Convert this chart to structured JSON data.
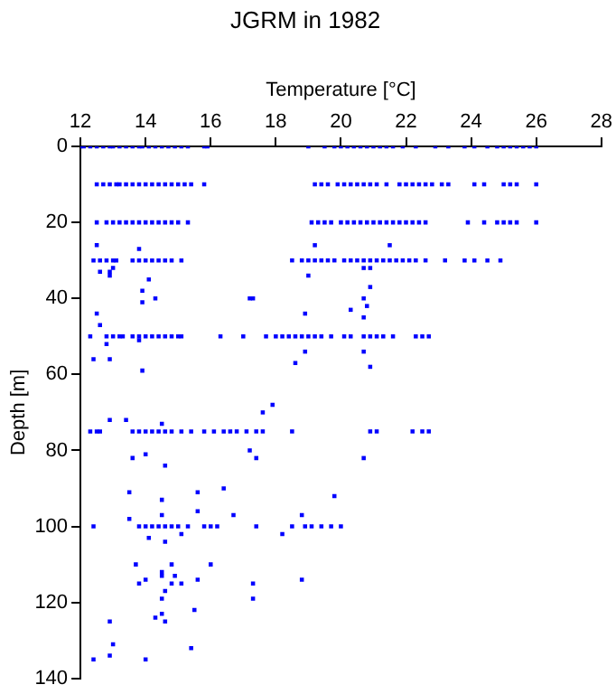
{
  "chart_data": {
    "type": "scatter",
    "title": "JGRM in 1982",
    "xlabel": "Temperature [°C]",
    "ylabel": "Depth [m]",
    "color": "#0000ff",
    "marker": "square",
    "grid": false,
    "legend": false,
    "xlim": [
      12,
      28
    ],
    "xticks": [
      12,
      14,
      16,
      18,
      20,
      22,
      24,
      26,
      28
    ],
    "ylim": [
      140,
      0
    ],
    "yticks": [
      0,
      20,
      40,
      60,
      80,
      100,
      120,
      140
    ],
    "x": [
      12.0,
      12.1,
      12.3,
      12.5,
      12.7,
      12.9,
      13.0,
      13.2,
      13.4,
      13.6,
      13.8,
      13.9,
      14.1,
      14.3,
      14.5,
      14.7,
      14.9,
      15.1,
      15.3,
      15.8,
      15.9,
      19.0,
      19.5,
      19.8,
      20.0,
      20.2,
      20.4,
      20.6,
      20.8,
      21.0,
      21.2,
      21.4,
      21.6,
      21.9,
      22.3,
      22.9,
      23.3,
      23.8,
      24.1,
      24.5,
      24.8,
      25.0,
      25.2,
      25.4,
      25.6,
      25.8,
      26.0,
      12.5,
      12.7,
      12.9,
      13.1,
      13.2,
      13.4,
      13.6,
      13.8,
      14.0,
      14.2,
      14.4,
      14.6,
      14.8,
      15.0,
      15.2,
      15.4,
      15.8,
      19.2,
      19.4,
      19.6,
      19.9,
      20.1,
      20.3,
      20.5,
      20.7,
      20.9,
      21.1,
      21.4,
      21.8,
      22.0,
      22.2,
      22.4,
      22.6,
      22.8,
      23.1,
      23.3,
      24.1,
      24.4,
      25.0,
      25.2,
      25.4,
      26.0,
      12.5,
      12.8,
      13.0,
      13.2,
      13.4,
      13.6,
      13.8,
      14.0,
      14.2,
      14.4,
      14.6,
      14.8,
      15.0,
      15.3,
      19.1,
      19.3,
      19.5,
      19.7,
      20.0,
      20.2,
      20.4,
      20.6,
      20.8,
      21.0,
      21.2,
      21.4,
      21.6,
      21.8,
      22.0,
      22.2,
      22.4,
      22.6,
      23.9,
      24.4,
      24.8,
      25.0,
      25.2,
      25.4,
      26.0,
      12.5,
      13.8,
      19.2,
      21.5,
      12.4,
      12.6,
      12.8,
      13.0,
      13.1,
      13.6,
      13.8,
      14.0,
      14.2,
      14.4,
      14.6,
      14.8,
      15.1,
      18.5,
      18.8,
      19.0,
      19.2,
      19.4,
      19.6,
      19.8,
      20.1,
      20.3,
      20.5,
      20.7,
      20.9,
      21.1,
      21.3,
      21.5,
      21.7,
      21.9,
      22.1,
      22.3,
      22.6,
      23.2,
      23.8,
      24.1,
      24.5,
      24.9,
      12.6,
      12.9,
      13.0,
      12.9,
      14.1,
      19.0,
      20.7,
      20.9,
      20.9,
      13.9,
      13.9,
      14.3,
      17.2,
      17.3,
      18.9,
      12.5,
      12.6,
      20.7,
      20.8,
      20.3,
      20.7,
      12.3,
      12.8,
      13.0,
      13.2,
      13.3,
      13.6,
      13.8,
      14.0,
      14.2,
      14.4,
      14.6,
      14.8,
      15.0,
      15.1,
      16.3,
      17.0,
      17.7,
      18.0,
      18.2,
      18.4,
      18.6,
      18.8,
      19.0,
      19.2,
      19.4,
      19.7,
      20.1,
      20.3,
      20.7,
      20.9,
      21.1,
      21.3,
      21.6,
      22.3,
      22.5,
      22.7,
      12.8,
      12.4,
      12.9,
      13.9,
      18.9,
      18.6,
      20.7,
      20.9,
      13.8,
      12.9,
      13.4,
      14.5,
      17.6,
      17.9,
      12.3,
      12.5,
      12.6,
      13.6,
      13.8,
      14.0,
      14.2,
      14.4,
      14.6,
      14.8,
      15.1,
      15.4,
      15.8,
      16.1,
      16.4,
      16.6,
      16.8,
      17.1,
      17.4,
      17.6,
      18.5,
      20.9,
      21.1,
      22.2,
      22.5,
      22.7,
      13.6,
      14.0,
      14.6,
      17.2,
      17.4,
      20.7,
      13.5,
      14.5,
      15.6,
      16.4,
      15.6,
      13.5,
      14.5,
      16.7,
      18.8,
      19.8,
      12.4,
      13.8,
      14.0,
      14.2,
      14.4,
      14.6,
      14.8,
      15.0,
      15.3,
      15.8,
      16.0,
      16.2,
      17.4,
      18.5,
      18.9,
      19.1,
      19.4,
      19.7,
      20.0,
      18.2,
      15.1,
      14.1,
      14.6,
      13.7,
      14.0,
      14.5,
      14.8,
      16.0,
      18.8,
      13.8,
      14.5,
      14.9,
      14.8,
      15.1,
      15.6,
      14.6,
      14.5,
      17.3,
      17.3,
      12.9,
      14.3,
      14.6,
      14.5,
      15.5,
      15.4,
      13.0,
      12.9,
      12.4,
      14.0
    ],
    "values": [
      0,
      0,
      0,
      0,
      0,
      0,
      0,
      0,
      0,
      0,
      0,
      0,
      0,
      0,
      0,
      0,
      0,
      0,
      0,
      0,
      0,
      0,
      0,
      0,
      0,
      0,
      0,
      0,
      0,
      0,
      0,
      0,
      0,
      0,
      0,
      0,
      0,
      0,
      0,
      0,
      0,
      0,
      0,
      0,
      0,
      0,
      0,
      10,
      10,
      10,
      10,
      10,
      10,
      10,
      10,
      10,
      10,
      10,
      10,
      10,
      10,
      10,
      10,
      10,
      10,
      10,
      10,
      10,
      10,
      10,
      10,
      10,
      10,
      10,
      10,
      10,
      10,
      10,
      10,
      10,
      10,
      10,
      10,
      10,
      10,
      10,
      10,
      10,
      10,
      20,
      20,
      20,
      20,
      20,
      20,
      20,
      20,
      20,
      20,
      20,
      20,
      20,
      20,
      20,
      20,
      20,
      20,
      20,
      20,
      20,
      20,
      20,
      20,
      20,
      20,
      20,
      20,
      20,
      20,
      20,
      20,
      20,
      20,
      20,
      20,
      20,
      20,
      20,
      26,
      27,
      26,
      26,
      30,
      30,
      30,
      30,
      30,
      30,
      30,
      30,
      30,
      30,
      30,
      30,
      30,
      30,
      30,
      30,
      30,
      30,
      30,
      30,
      30,
      30,
      30,
      30,
      30,
      30,
      30,
      30,
      30,
      30,
      30,
      30,
      30,
      30,
      30,
      30,
      30,
      30,
      33,
      33,
      32,
      34,
      35,
      34,
      32,
      32,
      37,
      38,
      41,
      40,
      40,
      40,
      44,
      44,
      47,
      40,
      42,
      43,
      45,
      50,
      50,
      50,
      50,
      50,
      50,
      50,
      50,
      50,
      50,
      50,
      50,
      50,
      50,
      50,
      50,
      50,
      50,
      50,
      50,
      50,
      50,
      50,
      50,
      50,
      50,
      50,
      50,
      50,
      50,
      50,
      50,
      50,
      50,
      50,
      50,
      52,
      56,
      56,
      59,
      54,
      57,
      54,
      58,
      51,
      72,
      72,
      73,
      70,
      68,
      75,
      75,
      75,
      75,
      75,
      75,
      75,
      75,
      75,
      75,
      75,
      75,
      75,
      75,
      75,
      75,
      75,
      75,
      75,
      75,
      75,
      75,
      75,
      75,
      75,
      75,
      82,
      81,
      84,
      80,
      82,
      82,
      91,
      93,
      91,
      90,
      96,
      98,
      97,
      97,
      97,
      92,
      100,
      100,
      100,
      100,
      100,
      100,
      100,
      100,
      100,
      100,
      100,
      100,
      100,
      100,
      100,
      100,
      100,
      100,
      100,
      102,
      102,
      103,
      104,
      110,
      114,
      112,
      110,
      110,
      114,
      115,
      113,
      113,
      115,
      115,
      114,
      117,
      119,
      115,
      119,
      125,
      124,
      125,
      123,
      122,
      132,
      131,
      134,
      135,
      135
    ]
  }
}
